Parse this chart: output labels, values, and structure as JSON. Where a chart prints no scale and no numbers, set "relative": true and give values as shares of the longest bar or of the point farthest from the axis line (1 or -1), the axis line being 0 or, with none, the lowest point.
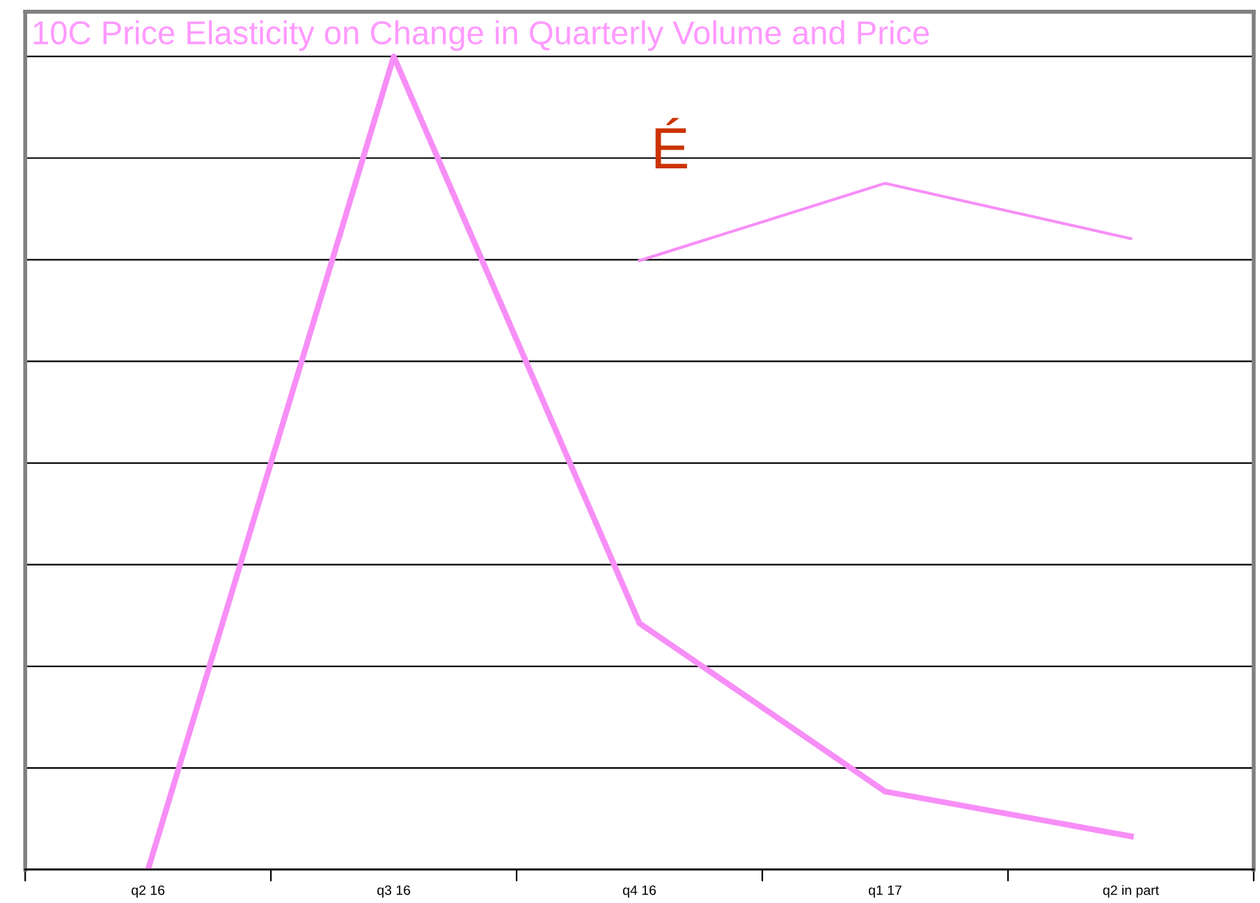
{
  "chart_data": {
    "type": "line",
    "title": "10C Price Elasticity on Change in Quarterly Volume and Price",
    "relative": true,
    "grid": "y",
    "legend": false,
    "marker": "none",
    "line_style": "solid",
    "categories": [
      "q2 16",
      "q3 16",
      "q4 16",
      "q1 17",
      "q2 in part"
    ],
    "annotations": [
      "É"
    ],
    "series": [
      {
        "color": "#f78ef7",
        "values": [
          0,
          1,
          0.303,
          0.096,
          0.041
        ]
      },
      {
        "color": "#f78ef7",
        "values": [
          null,
          null,
          0.749,
          0.844,
          0.776
        ]
      }
    ]
  }
}
